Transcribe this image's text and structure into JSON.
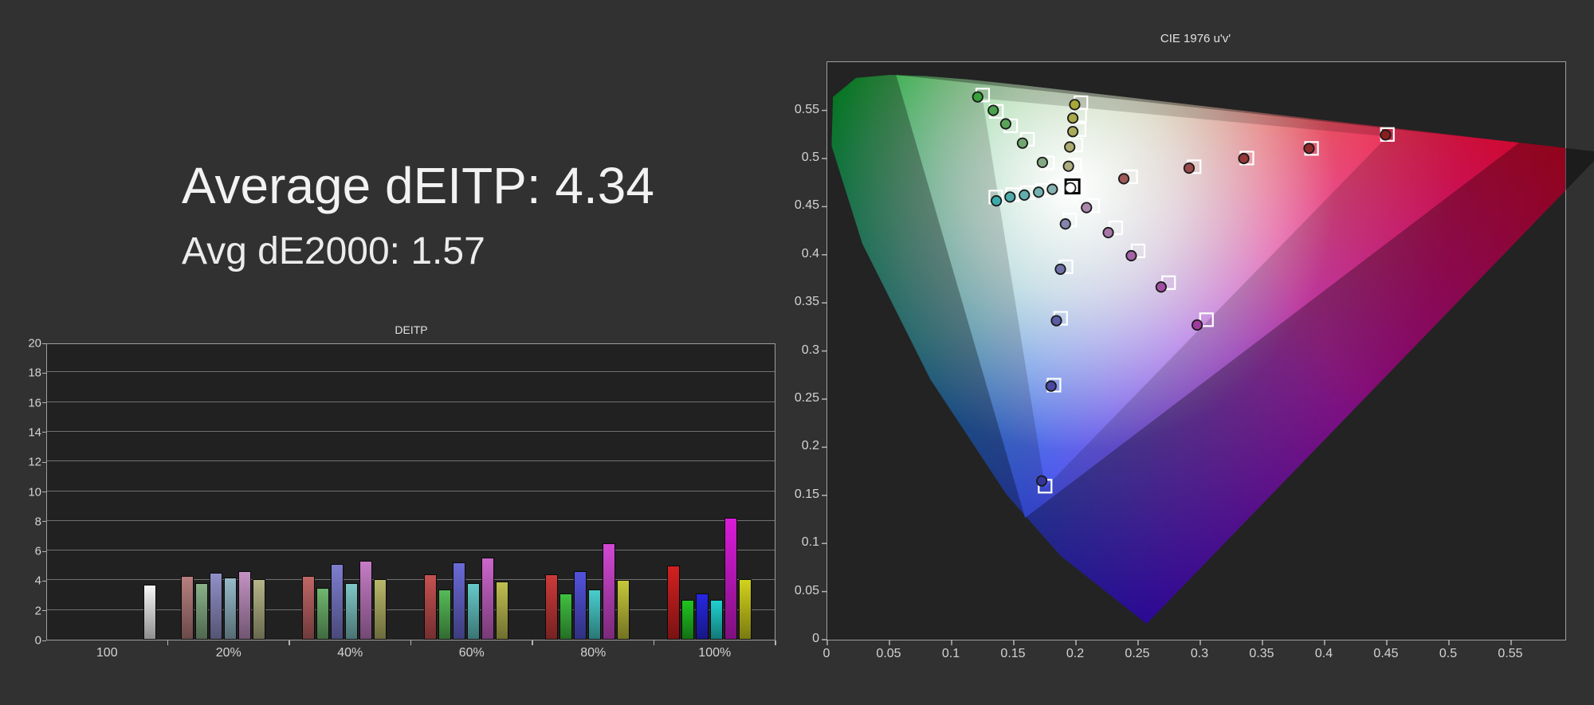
{
  "summary": {
    "line1": "Average dEITP: 4.34",
    "line2": "Avg dE2000: 1.57"
  },
  "colors": {
    "background": "#313131",
    "plot_background": "#212121",
    "cie_plot_background": "#232323",
    "gridline": "#7f7f7f",
    "axis_border": "#9f9f9f",
    "text": "#e2e2e2",
    "bar_outline": "#0a0a0a",
    "target_marker_stroke": "#ffffff",
    "measured_marker_stroke": "#1a1a1a"
  },
  "chart_data": [
    {
      "type": "bar",
      "title": "DEITP",
      "xlabel": "",
      "ylabel": "",
      "ylim": [
        0,
        20
      ],
      "y_ticks": [
        0,
        2,
        4,
        6,
        8,
        10,
        12,
        14,
        16,
        18,
        20
      ],
      "grid": true,
      "categories": [
        "100",
        "20%",
        "40%",
        "60%",
        "80%",
        "100%"
      ],
      "series": [
        {
          "name": "white",
          "values": [
            3.7,
            null,
            null,
            null,
            null,
            null
          ],
          "colors": [
            "#f6f6f6",
            null,
            null,
            null,
            null,
            null
          ]
        },
        {
          "name": "red",
          "values": [
            null,
            4.3,
            4.3,
            4.4,
            4.4,
            5.0
          ],
          "colors": [
            null,
            "#b97f7f",
            "#c06666",
            "#c65151",
            "#cc3a3a",
            "#d32020"
          ]
        },
        {
          "name": "green",
          "values": [
            null,
            3.8,
            3.5,
            3.4,
            3.1,
            2.7
          ],
          "colors": [
            null,
            "#89b189",
            "#6fb66f",
            "#57ba57",
            "#40c040",
            "#20c420"
          ]
        },
        {
          "name": "blue",
          "values": [
            null,
            4.5,
            5.1,
            5.2,
            4.6,
            3.1
          ],
          "colors": [
            null,
            "#9090c8",
            "#7e7ed0",
            "#6a6ad7",
            "#5353dd",
            "#2727e2"
          ]
        },
        {
          "name": "cyan",
          "values": [
            null,
            4.2,
            3.8,
            3.8,
            3.4,
            2.7
          ],
          "colors": [
            null,
            "#96bac8",
            "#80c6c6",
            "#66c9c9",
            "#4acdcd",
            "#20d0d0"
          ]
        },
        {
          "name": "magenta",
          "values": [
            null,
            4.6,
            5.3,
            5.5,
            6.5,
            8.2
          ],
          "colors": [
            null,
            "#c392c3",
            "#c67cc6",
            "#cc66cc",
            "#d348d3",
            "#da1cda"
          ]
        },
        {
          "name": "yellow",
          "values": [
            null,
            4.1,
            4.1,
            3.9,
            4.0,
            4.1
          ],
          "colors": [
            null,
            "#b5b588",
            "#b8b86a",
            "#bfbf52",
            "#c7c73b",
            "#d2d21c"
          ]
        }
      ]
    },
    {
      "type": "scatter",
      "title": "CIE 1976 u'v'",
      "xlabel": "",
      "ylabel": "",
      "xlim": [
        0,
        0.594
      ],
      "ylim": [
        0,
        0.6
      ],
      "x_ticks": [
        "0",
        "0.05",
        "0.1",
        "0.15",
        "0.2",
        "0.25",
        "0.3",
        "0.35",
        "0.4",
        "0.45",
        "0.5",
        "0.55"
      ],
      "y_ticks": [
        "0",
        "0.05",
        "0.1",
        "0.15",
        "0.2",
        "0.25",
        "0.3",
        "0.35",
        "0.4",
        "0.45",
        "0.5",
        "0.55"
      ],
      "legend": "none",
      "white_point": {
        "target": [
          0.1972,
          0.471
        ],
        "measured": [
          0.1955,
          0.4694
        ],
        "fill": "#ffffff"
      },
      "sweeps": [
        {
          "name": "red",
          "points": [
            {
              "sat": "20%",
              "measured": [
                0.2385,
                0.479
              ],
              "target": [
                0.244,
                0.481
              ],
              "fill": "#a05858"
            },
            {
              "sat": "40%",
              "measured": [
                0.291,
                0.49
              ],
              "target": [
                0.295,
                0.4915
              ],
              "fill": "#9a4848"
            },
            {
              "sat": "60%",
              "measured": [
                0.335,
                0.5
              ],
              "target": [
                0.3375,
                0.5005
              ],
              "fill": "#943838"
            },
            {
              "sat": "80%",
              "measured": [
                0.3875,
                0.5105
              ],
              "target": [
                0.3895,
                0.5105
              ],
              "fill": "#8e2a2a"
            },
            {
              "sat": "100%",
              "measured": [
                0.449,
                0.5245
              ],
              "target": [
                0.4505,
                0.525
              ],
              "fill": "#882020"
            }
          ]
        },
        {
          "name": "green",
          "points": [
            {
              "sat": "20%",
              "measured": [
                0.173,
                0.496
              ],
              "target": [
                0.177,
                0.4955
              ],
              "fill": "#84a884"
            },
            {
              "sat": "40%",
              "measured": [
                0.157,
                0.516
              ],
              "target": [
                0.161,
                0.52
              ],
              "fill": "#70a670"
            },
            {
              "sat": "60%",
              "measured": [
                0.1435,
                0.536
              ],
              "target": [
                0.1475,
                0.534
              ],
              "fill": "#5aa45a"
            },
            {
              "sat": "80%",
              "measured": [
                0.1335,
                0.55
              ],
              "target": [
                0.136,
                0.549
              ],
              "fill": "#4aa24a"
            },
            {
              "sat": "100%",
              "measured": [
                0.121,
                0.564
              ],
              "target": [
                0.125,
                0.566
              ],
              "fill": "#3aa03a"
            }
          ]
        },
        {
          "name": "blue",
          "points": [
            {
              "sat": "20%",
              "measured": [
                0.1915,
                0.432
              ],
              "target": [
                0.195,
                0.436
              ],
              "fill": "#8484ac"
            },
            {
              "sat": "40%",
              "measured": [
                0.1875,
                0.385
              ],
              "target": [
                0.192,
                0.3875
              ],
              "fill": "#7070a8"
            },
            {
              "sat": "60%",
              "measured": [
                0.1843,
                0.3315
              ],
              "target": [
                0.1877,
                0.334
              ],
              "fill": "#5c5ca4"
            },
            {
              "sat": "80%",
              "measured": [
                0.18,
                0.2635
              ],
              "target": [
                0.1823,
                0.2645
              ],
              "fill": "#4848a0"
            },
            {
              "sat": "100%",
              "measured": [
                0.1725,
                0.165
              ],
              "target": [
                0.1752,
                0.1595
              ],
              "fill": "#343498"
            }
          ]
        },
        {
          "name": "cyan",
          "points": [
            {
              "sat": "20%",
              "measured": [
                0.181,
                0.468
              ],
              "target": [
                0.184,
                0.47
              ],
              "fill": "#88b2b2"
            },
            {
              "sat": "40%",
              "measured": [
                0.17,
                0.465
              ],
              "target": [
                0.173,
                0.467
              ],
              "fill": "#76b0b0"
            },
            {
              "sat": "60%",
              "measured": [
                0.1585,
                0.462
              ],
              "target": [
                0.161,
                0.4645
              ],
              "fill": "#62aeae"
            },
            {
              "sat": "80%",
              "measured": [
                0.147,
                0.46
              ],
              "target": [
                0.149,
                0.4625
              ],
              "fill": "#4eacac"
            },
            {
              "sat": "100%",
              "measured": [
                0.136,
                0.456
              ],
              "target": [
                0.1355,
                0.46
              ],
              "fill": "#3aabab"
            }
          ]
        },
        {
          "name": "magenta",
          "points": [
            {
              "sat": "20%",
              "measured": [
                0.2085,
                0.449
              ],
              "target": [
                0.2135,
                0.451
              ],
              "fill": "#ac88ac"
            },
            {
              "sat": "40%",
              "measured": [
                0.226,
                0.423
              ],
              "target": [
                0.232,
                0.428
              ],
              "fill": "#a876a8"
            },
            {
              "sat": "60%",
              "measured": [
                0.2445,
                0.399
              ],
              "target": [
                0.25,
                0.404
              ],
              "fill": "#a562a5"
            },
            {
              "sat": "80%",
              "measured": [
                0.2685,
                0.3665
              ],
              "target": [
                0.2745,
                0.371
              ],
              "fill": "#a24ea2"
            },
            {
              "sat": "100%",
              "measured": [
                0.2975,
                0.327
              ],
              "target": [
                0.305,
                0.3325
              ],
              "fill": "#a03aa0"
            }
          ]
        },
        {
          "name": "yellow",
          "points": [
            {
              "sat": "20%",
              "measured": [
                0.194,
                0.492
              ],
              "target": [
                0.199,
                0.493
              ],
              "fill": "#acac80"
            },
            {
              "sat": "40%",
              "measured": [
                0.195,
                0.512
              ],
              "target": [
                0.2,
                0.514
              ],
              "fill": "#abab6e"
            },
            {
              "sat": "60%",
              "measured": [
                0.1975,
                0.528
              ],
              "target": [
                0.2025,
                0.53
              ],
              "fill": "#aaaa5c"
            },
            {
              "sat": "80%",
              "measured": [
                0.1975,
                0.542
              ],
              "target": [
                0.203,
                0.545
              ],
              "fill": "#a9a94a"
            },
            {
              "sat": "100%",
              "measured": [
                0.199,
                0.556
              ],
              "target": [
                0.204,
                0.558
              ],
              "fill": "#a8a838"
            }
          ]
        }
      ]
    }
  ]
}
